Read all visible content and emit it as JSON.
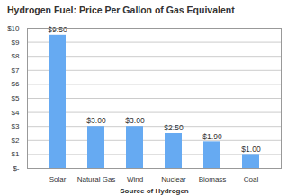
{
  "chart_data": {
    "type": "bar",
    "title": "Hydrogen Fuel: Price Per Gallon of Gas Equivalent",
    "x_label": "Source of Hydrogen",
    "categories": [
      "Solar",
      "Natural Gas",
      "Wind",
      "Nuclear",
      "Biomass",
      "Coal"
    ],
    "values": [
      9.5,
      3.0,
      3.0,
      2.5,
      1.9,
      1.0
    ],
    "value_labels": [
      "$9.50",
      "$3.00",
      "$3.00",
      "$2.50",
      "$1.90",
      "$1.00"
    ],
    "color": "#66aaf2",
    "ylim": [
      0,
      10
    ],
    "yticks": [
      {
        "value": 0,
        "label": "$-"
      },
      {
        "value": 1,
        "label": "$1"
      },
      {
        "value": 2,
        "label": "$2"
      },
      {
        "value": 3,
        "label": "$3"
      },
      {
        "value": 4,
        "label": "$4"
      },
      {
        "value": 5,
        "label": "$5"
      },
      {
        "value": 6,
        "label": "$6"
      },
      {
        "value": 7,
        "label": "$7"
      },
      {
        "value": 8,
        "label": "$8"
      },
      {
        "value": 9,
        "label": "$9"
      },
      {
        "value": 10,
        "label": "$10"
      }
    ],
    "grid": true,
    "data_labels": true
  }
}
